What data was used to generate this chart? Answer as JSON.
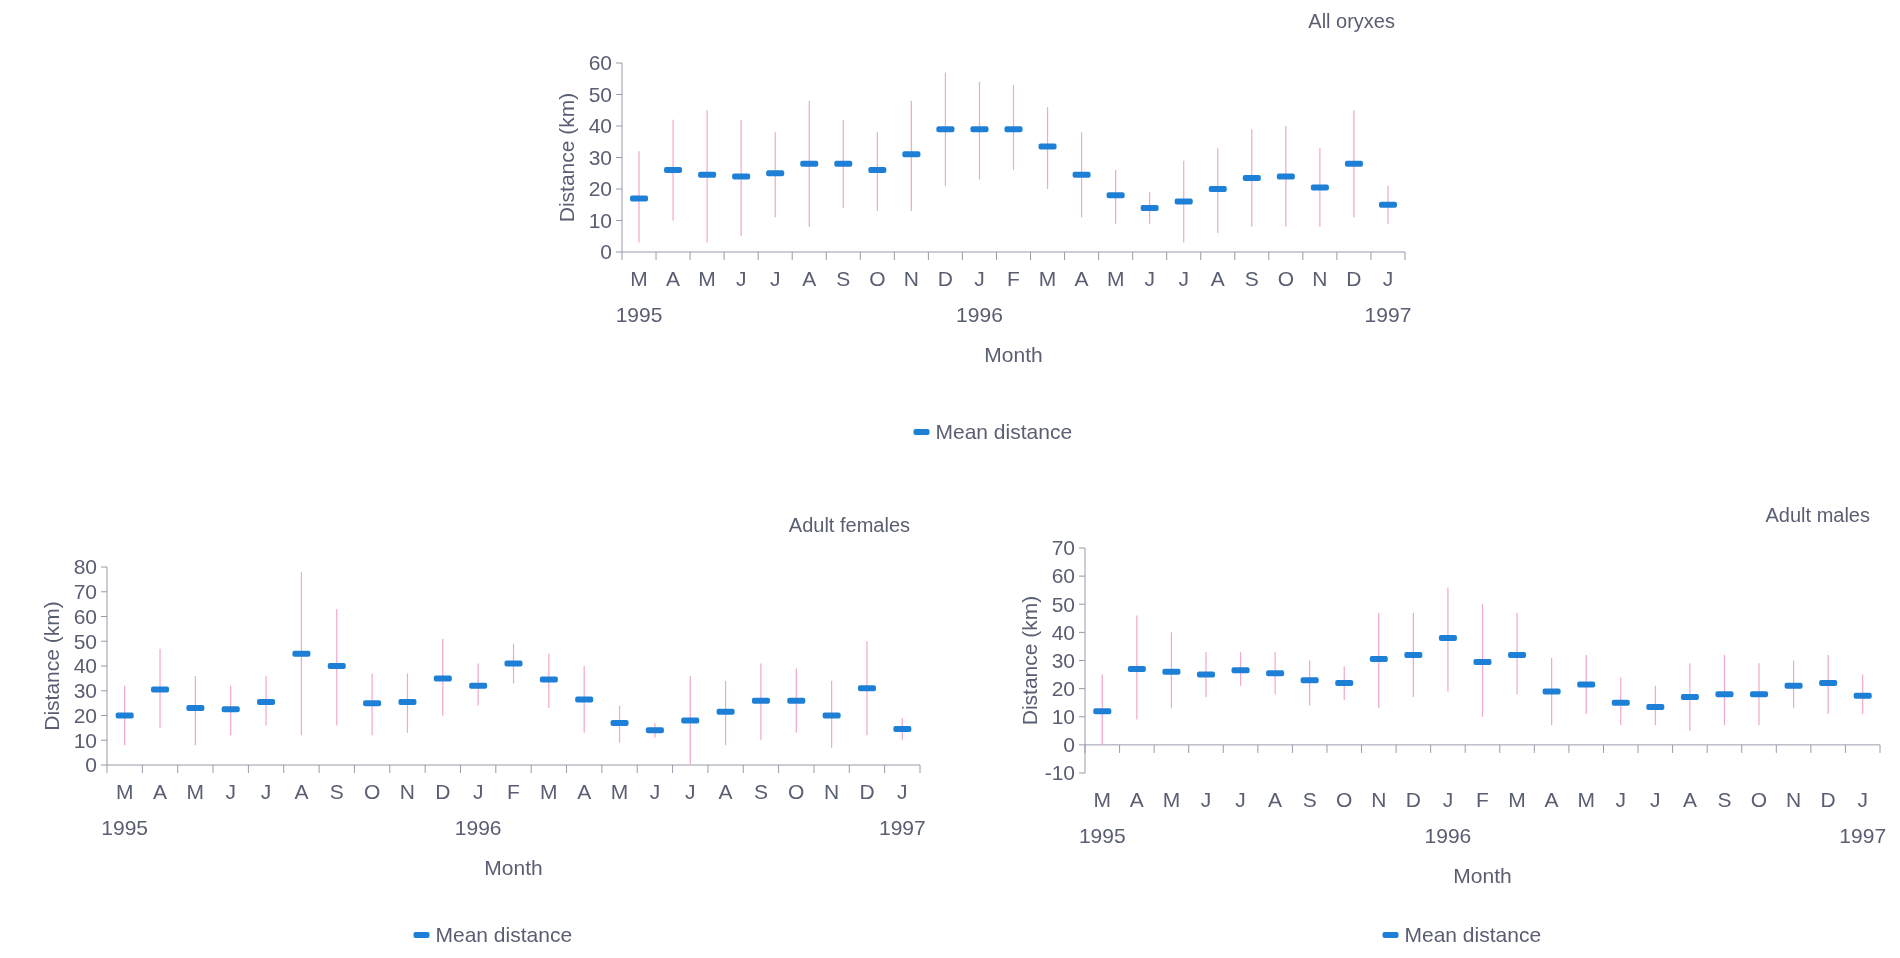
{
  "chart_data": [
    {
      "type": "scatter",
      "title": "All oryxes",
      "xlabel": "Month",
      "ylabel": "Distance (km)",
      "categories": [
        "M\n1995",
        "A",
        "M",
        "J",
        "J",
        "A",
        "S",
        "O",
        "N",
        "D",
        "J\n1996",
        "F",
        "M",
        "A",
        "M",
        "J",
        "J",
        "A",
        "S",
        "O",
        "N",
        "D",
        "J\n1997"
      ],
      "ylim": [
        0,
        60
      ],
      "yticks": [
        0,
        10,
        20,
        30,
        40,
        50,
        60
      ],
      "legend": "bottom",
      "series": [
        {
          "name": "Mean distance",
          "color": "#1e7fd6",
          "values": [
            17,
            26,
            24.5,
            24,
            25,
            28,
            28,
            26,
            31,
            39,
            39,
            39,
            33.5,
            24.5,
            18,
            14,
            16,
            20,
            23.5,
            24,
            20.5,
            28,
            15
          ],
          "errors": [
            [
              3,
              32
            ],
            [
              10,
              42
            ],
            [
              3,
              45
            ],
            [
              5,
              42
            ],
            [
              11,
              38
            ],
            [
              8,
              48
            ],
            [
              14,
              42
            ],
            [
              13,
              38
            ],
            [
              13,
              48
            ],
            [
              21,
              57
            ],
            [
              23,
              54
            ],
            [
              26,
              53
            ],
            [
              20,
              46
            ],
            [
              11,
              38
            ],
            [
              9,
              26
            ],
            [
              9,
              19
            ],
            [
              3,
              29
            ],
            [
              6,
              33
            ],
            [
              8,
              39
            ],
            [
              8,
              40
            ],
            [
              8,
              33
            ],
            [
              11,
              45
            ],
            [
              9,
              21
            ]
          ]
        }
      ]
    },
    {
      "type": "scatter",
      "title": "Adult females",
      "xlabel": "Month",
      "ylabel": "Distance (km)",
      "categories": [
        "M\n1995",
        "A",
        "M",
        "J",
        "J",
        "A",
        "S",
        "O",
        "N",
        "D",
        "J\n1996",
        "F",
        "M",
        "A",
        "M",
        "J",
        "J",
        "A",
        "S",
        "O",
        "N",
        "D",
        "J\n1997"
      ],
      "ylim": [
        0,
        80
      ],
      "yticks": [
        0,
        10,
        20,
        30,
        40,
        50,
        60,
        70,
        80
      ],
      "legend": "bottom",
      "series": [
        {
          "name": "Mean distance",
          "color": "#1e7fd6",
          "values": [
            20,
            30.5,
            23,
            22.5,
            25.5,
            45,
            40,
            25,
            25.5,
            35,
            32,
            41,
            34.5,
            26.5,
            17,
            14,
            18,
            21.5,
            26,
            26,
            20,
            31,
            14.5
          ],
          "errors": [
            [
              8,
              32
            ],
            [
              15,
              47
            ],
            [
              8,
              36
            ],
            [
              12,
              32
            ],
            [
              16,
              36
            ],
            [
              12,
              78
            ],
            [
              16,
              63
            ],
            [
              12,
              37
            ],
            [
              13,
              37
            ],
            [
              20,
              51
            ],
            [
              24,
              41
            ],
            [
              33,
              49
            ],
            [
              23,
              45
            ],
            [
              13,
              40
            ],
            [
              9,
              24
            ],
            [
              11,
              17
            ],
            [
              0,
              36
            ],
            [
              8,
              34
            ],
            [
              10,
              41
            ],
            [
              13,
              39
            ],
            [
              7,
              34
            ],
            [
              12,
              50
            ],
            [
              10,
              19
            ]
          ]
        }
      ]
    },
    {
      "type": "scatter",
      "title": "Adult males",
      "xlabel": "Month",
      "ylabel": "Distance (km)",
      "categories": [
        "M\n1995",
        "A",
        "M",
        "J",
        "J",
        "A",
        "S",
        "O",
        "N",
        "D",
        "J\n1996",
        "F",
        "M",
        "A",
        "M",
        "J",
        "J",
        "A",
        "S",
        "O",
        "N",
        "D",
        "J\n1997"
      ],
      "ylim": [
        -10,
        70
      ],
      "yticks": [
        -10,
        0,
        10,
        20,
        30,
        40,
        50,
        60,
        70
      ],
      "legend": "bottom",
      "series": [
        {
          "name": "Mean distance",
          "color": "#1e7fd6",
          "values": [
            12,
            27,
            26,
            25,
            26.5,
            25.5,
            23,
            22,
            30.5,
            32,
            38,
            29.5,
            32,
            19,
            21.5,
            15,
            13.5,
            17,
            18,
            18,
            21,
            22,
            17.5
          ],
          "errors": [
            [
              0,
              25
            ],
            [
              9,
              46
            ],
            [
              13,
              40
            ],
            [
              17,
              33
            ],
            [
              21,
              33
            ],
            [
              18,
              33
            ],
            [
              14,
              30
            ],
            [
              16,
              28
            ],
            [
              13,
              47
            ],
            [
              17,
              47
            ],
            [
              19,
              56
            ],
            [
              10,
              50
            ],
            [
              18,
              47
            ],
            [
              7,
              31
            ],
            [
              11,
              32
            ],
            [
              7,
              24
            ],
            [
              7,
              21
            ],
            [
              5,
              29
            ],
            [
              7,
              32
            ],
            [
              7,
              29
            ],
            [
              13,
              30
            ],
            [
              11,
              32
            ],
            [
              11,
              25
            ]
          ]
        }
      ]
    }
  ]
}
